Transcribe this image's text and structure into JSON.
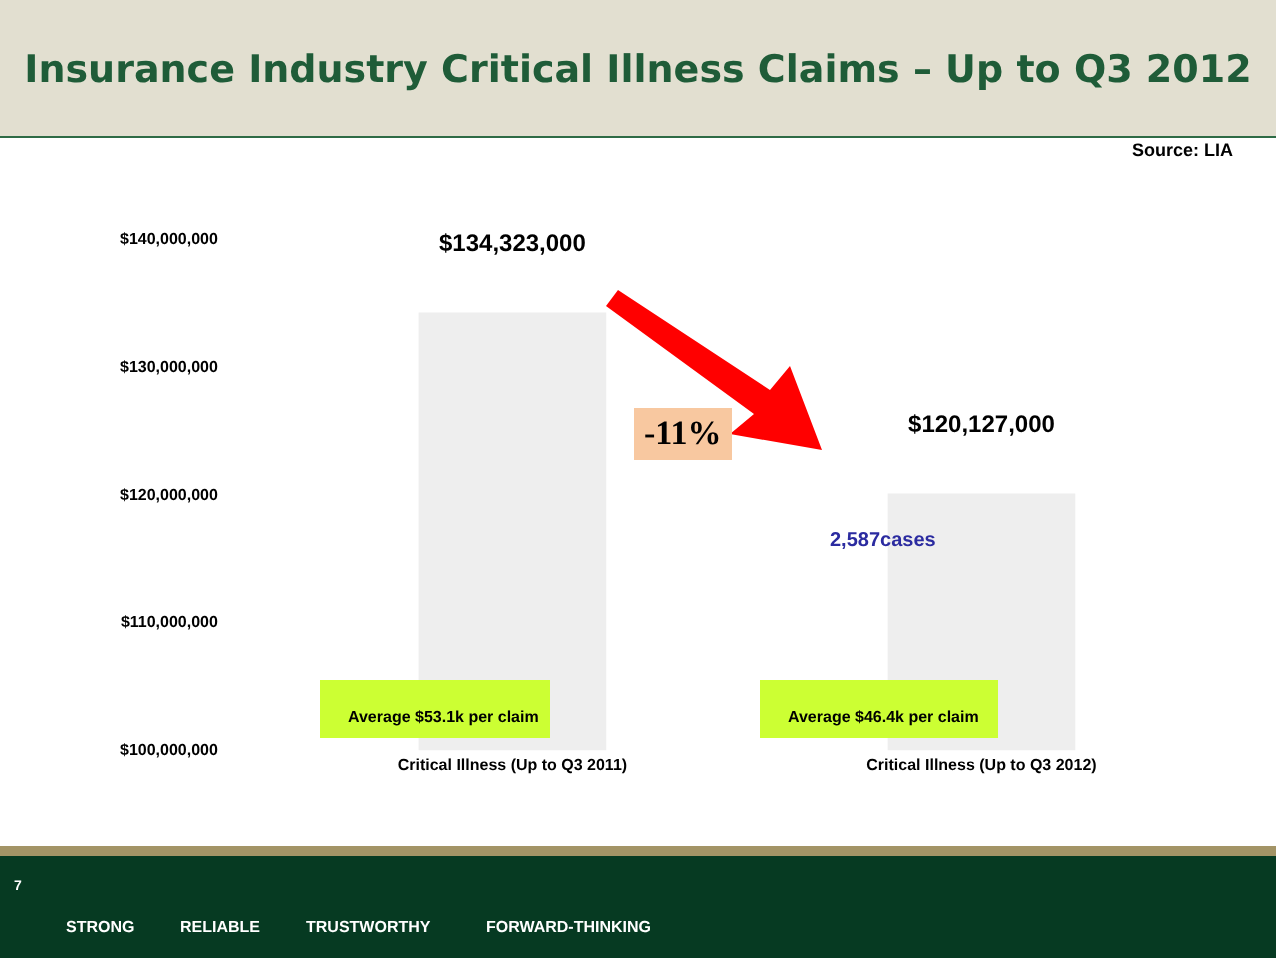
{
  "chart_data": {
    "type": "bar",
    "title": "Insurance Industry Critical Illness Claims – Up to Q3 2012",
    "categories": [
      "Critical Illness (Up to Q3 2011)",
      "Critical Illness (Up to Q3 2012)"
    ],
    "values": [
      134323000,
      120127000
    ],
    "color": "#eeeeee",
    "value_labels": [
      "$134,323,000",
      "$120,127,000"
    ],
    "ylim": [
      100000000,
      140000000
    ],
    "yticks": [
      {
        "value": 100000000,
        "label": "$100,000,000"
      },
      {
        "value": 110000000,
        "label": "$110,000,000"
      },
      {
        "value": 120000000,
        "label": "$120,000,000"
      },
      {
        "value": 130000000,
        "label": "$130,000,000"
      },
      {
        "value": 140000000,
        "label": "$140,000,000"
      }
    ],
    "grid": false,
    "legend": false,
    "annotations": [
      "Source: LIA",
      "-11%",
      "2,587cases",
      "Average $53.1k per claim",
      "Average $46.4k per claim",
      "7",
      "STRONG",
      "RELIABLE",
      "TRUSTWORTHY",
      "FORWARD-THINKING"
    ]
  }
}
